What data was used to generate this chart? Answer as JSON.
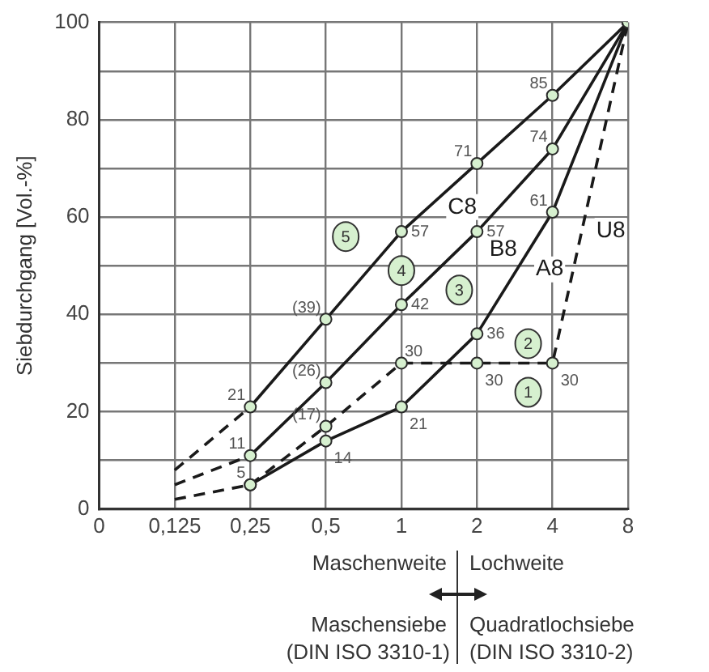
{
  "chart_data": {
    "type": "line",
    "ylabel": "Siebdurchgang [Vol.-%]",
    "xlim": [
      0.0625,
      8
    ],
    "ylim": [
      0,
      100
    ],
    "log": "x",
    "xticks": [
      {
        "value": 0.0625,
        "label": "0"
      },
      {
        "value": 0.125,
        "label": "0,125"
      },
      {
        "value": 0.25,
        "label": "0,25"
      },
      {
        "value": 0.5,
        "label": "0,5"
      },
      1,
      2,
      4,
      8
    ],
    "yticks": [
      0,
      {
        "value": 10,
        "label": null
      },
      20,
      {
        "value": 30,
        "label": null
      },
      40,
      {
        "value": 50,
        "label": null
      },
      60,
      {
        "value": 70,
        "label": null
      },
      80,
      {
        "value": 90,
        "label": null
      },
      100
    ],
    "grid": true,
    "legend": false,
    "marker": "circle",
    "line_style": "solid",
    "series": [
      {
        "name": "C8",
        "color": "#1a1a1a",
        "x": [
          0.25,
          0.5,
          1,
          2,
          4,
          8
        ],
        "values": [
          21,
          39,
          57,
          71,
          85,
          100
        ],
        "value_labels": [
          "21",
          "(39)",
          "57",
          "71",
          "85",
          null
        ]
      },
      {
        "name": "B8",
        "color": "#1a1a1a",
        "x": [
          0.25,
          0.5,
          1,
          2,
          4,
          8
        ],
        "values": [
          11,
          26,
          42,
          57,
          74,
          100
        ],
        "value_labels": [
          "11",
          "(26)",
          "42",
          "57",
          "74",
          null
        ]
      },
      {
        "name": "A8",
        "color": "#1a1a1a",
        "x": [
          0.25,
          0.5,
          1,
          2,
          4,
          8
        ],
        "values": [
          5,
          14,
          21,
          36,
          61,
          100
        ],
        "value_labels": [
          "5",
          "14",
          "21",
          "36",
          "61",
          null
        ]
      },
      {
        "name": "U8",
        "color": "#1a1a1a",
        "line_style": "dashed",
        "x": [
          0.25,
          0.5,
          1,
          2,
          4,
          8
        ],
        "values": [
          5,
          17,
          30,
          30,
          30,
          100
        ],
        "value_labels": [
          null,
          "(17)",
          "30",
          "30",
          "30",
          null
        ]
      },
      {
        "color": "#1a1a1a",
        "line_style": "dashed",
        "marker": "none",
        "x": [
          0.125,
          0.25
        ],
        "values": [
          8,
          21
        ]
      },
      {
        "color": "#1a1a1a",
        "line_style": "dashed",
        "marker": "none",
        "x": [
          0.125,
          0.25
        ],
        "values": [
          5,
          11
        ]
      },
      {
        "color": "#1a1a1a",
        "line_style": "dashed",
        "marker": "none",
        "x": [
          0.125,
          0.25
        ],
        "values": [
          2,
          5
        ]
      }
    ],
    "annotations": [
      {
        "text": "1",
        "x": 3.2,
        "y": 24
      },
      {
        "text": "2",
        "x": 3.2,
        "y": 34
      },
      {
        "text": "3",
        "x": 1.7,
        "y": 45
      },
      {
        "text": "4",
        "x": 1,
        "y": 49
      },
      {
        "text": "5",
        "x": 0.6,
        "y": 56
      },
      "Maschenweite",
      "Lochweite",
      "Maschensiebe",
      "Quadratlochsiebe",
      "(DIN ISO 3310-1)",
      "(DIN ISO 3310-2)"
    ]
  }
}
